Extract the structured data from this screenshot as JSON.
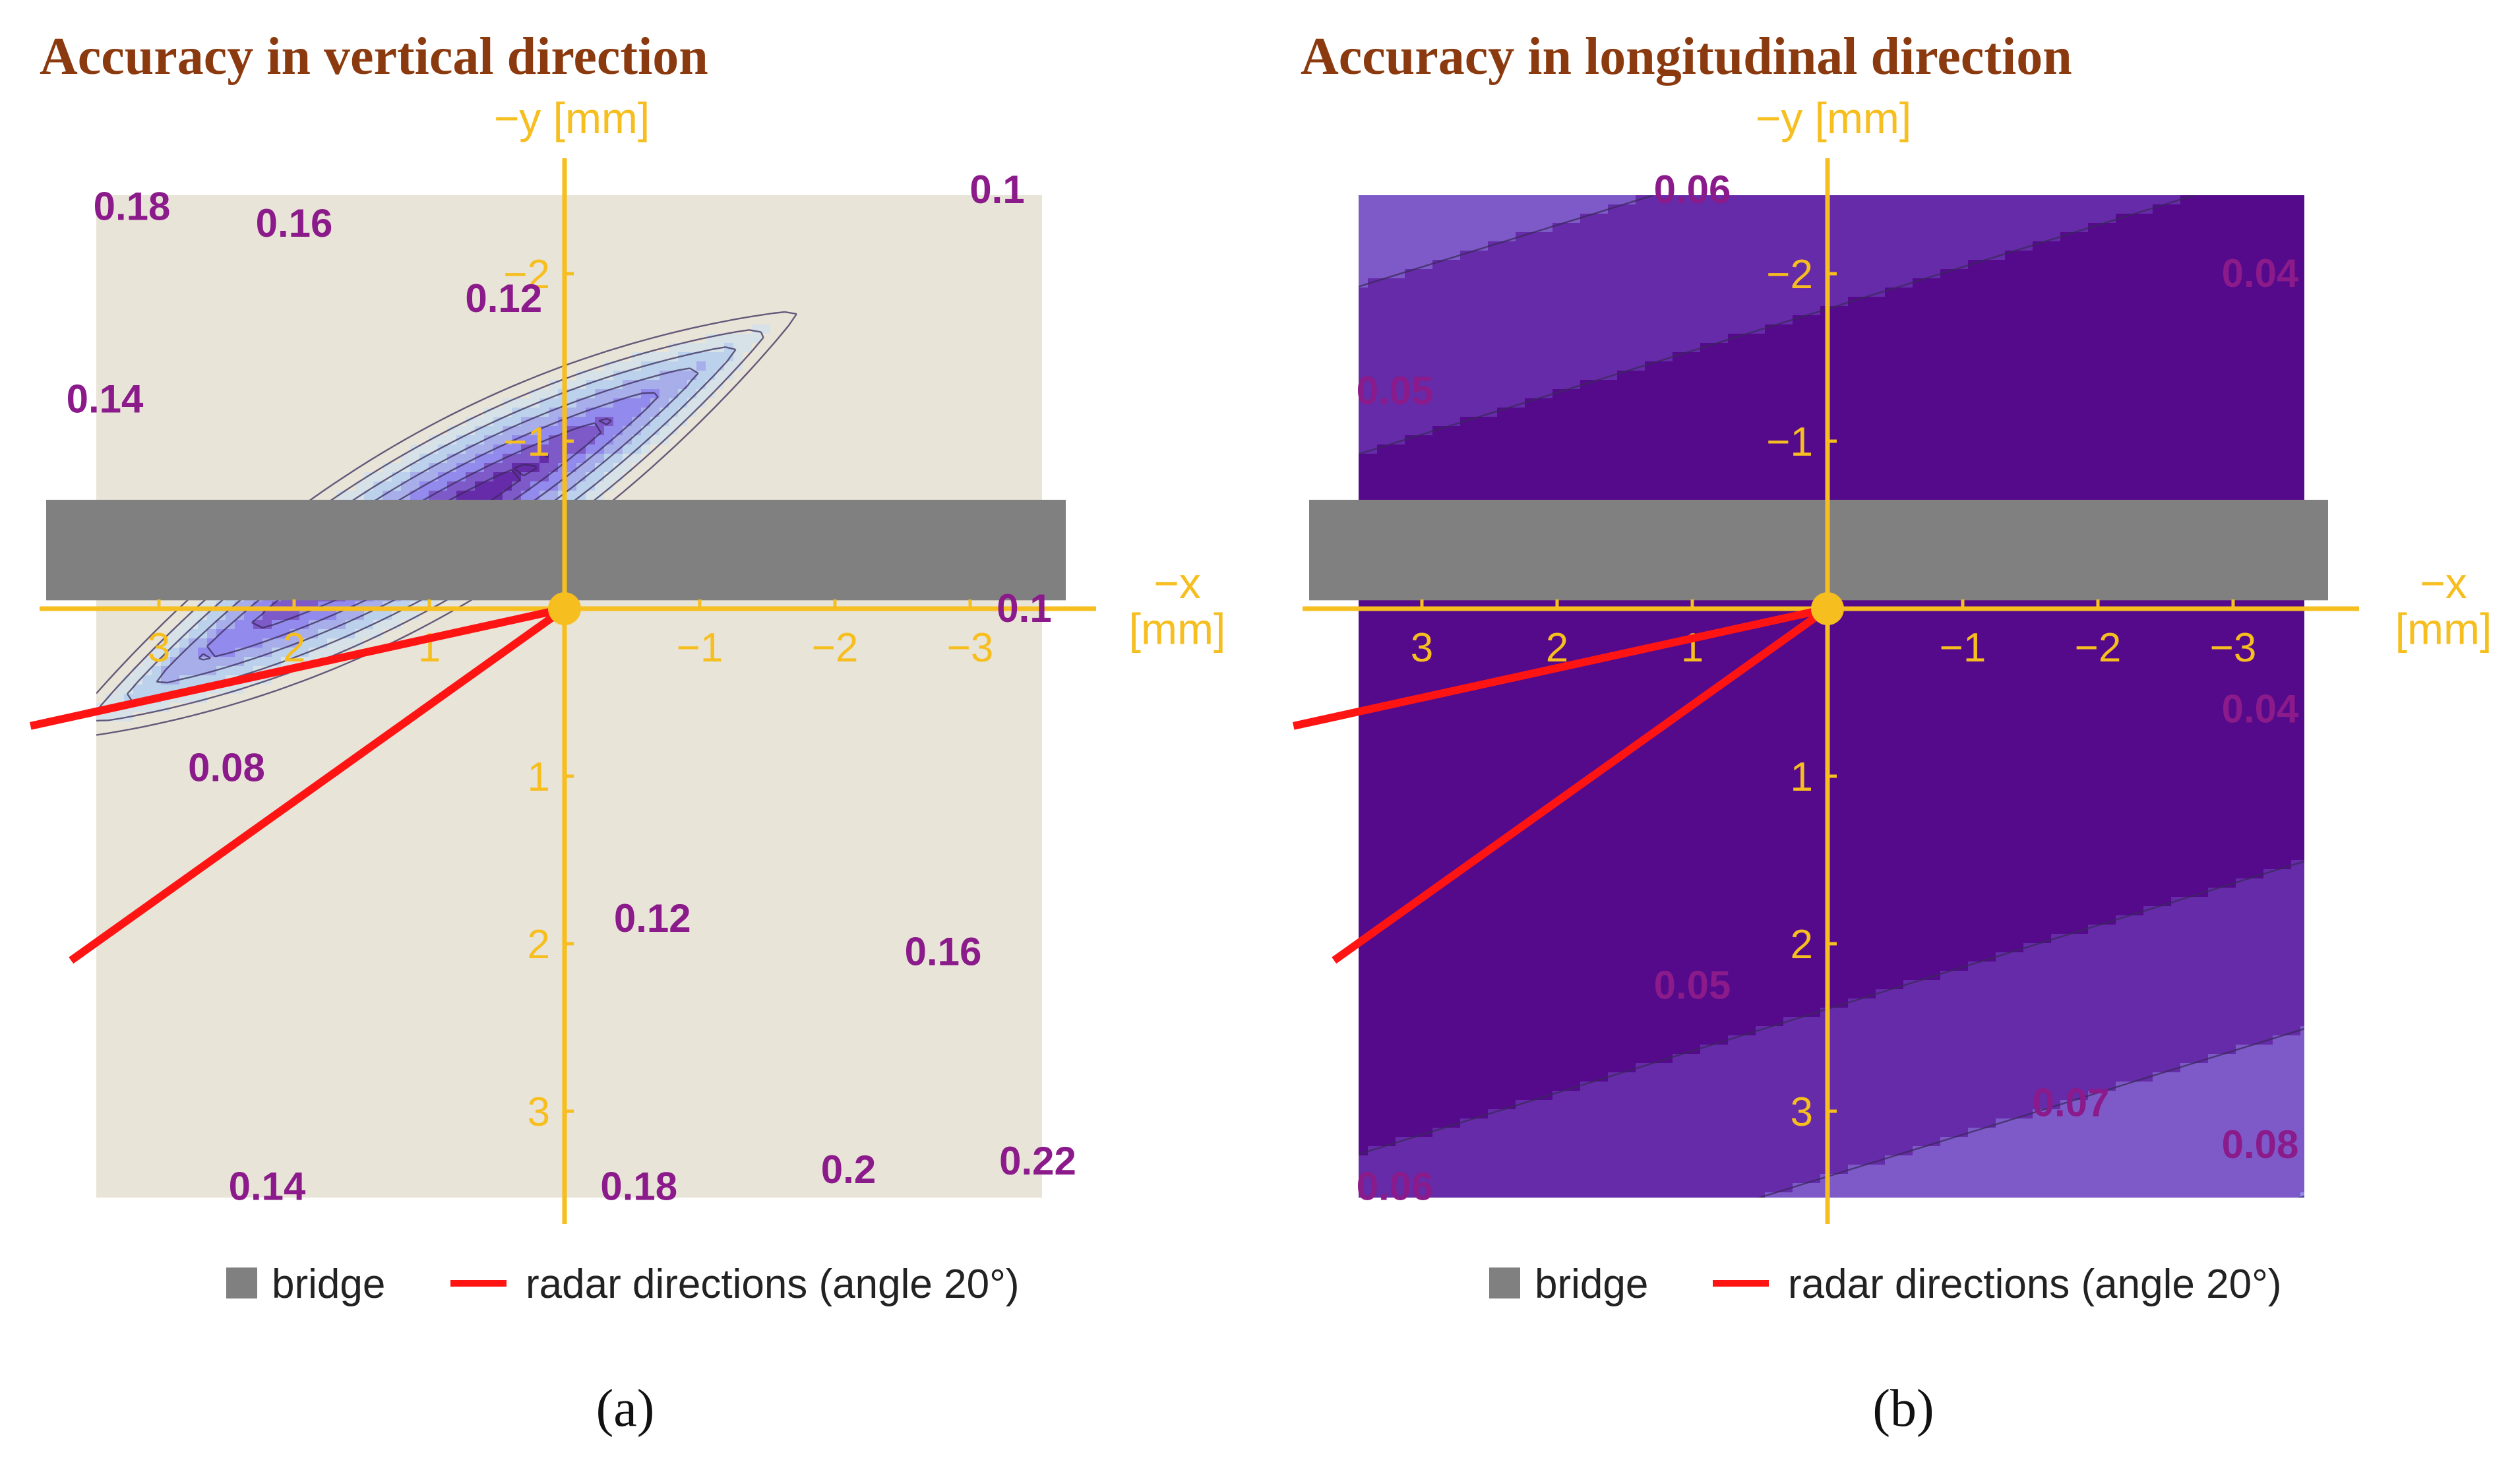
{
  "colors": {
    "title": "#8B3A0F",
    "axis": "#F6BE1E",
    "contour_label": "#8B1A8B",
    "bridge": "#808080",
    "radar": "#FF1414",
    "palette": [
      "#540A8A",
      "#662BA8",
      "#7E5AC8",
      "#928AEC",
      "#A8AEEA",
      "#BCD2EC",
      "#D6E2E8",
      "#E9E4D8"
    ]
  },
  "chart_data": [
    {
      "type": "contour",
      "panel": "a",
      "title": "Accuracy in vertical direction",
      "xlabel": "−x\n[mm]",
      "ylabel": "−y [mm]",
      "x_ticks": [
        3,
        2,
        1,
        -1,
        -2,
        -3
      ],
      "y_ticks": [
        -2,
        -1,
        1,
        2,
        3
      ],
      "x_tick_labels": [
        "3",
        "2",
        "1",
        "−1",
        "−2",
        "−3"
      ],
      "y_tick_labels": [
        "−2",
        "−1",
        "1",
        "2",
        "3"
      ],
      "xlim": [
        3.5,
        -3.5
      ],
      "ylim": [
        -2.5,
        3.5
      ],
      "contour_levels": [
        0.08,
        0.1,
        0.12,
        0.14,
        0.16,
        0.18,
        0.2,
        0.22
      ],
      "field": {
        "min": 0.08,
        "center": [
          1.0,
          -0.5
        ],
        "major_dir_deg": 25,
        "major_scale": 0.26,
        "minor_scale": 0.015
      },
      "contour_labels": [
        {
          "text": "0.18",
          "x": 3.2,
          "y": -2.4
        },
        {
          "text": "0.16",
          "x": 2.0,
          "y": -2.3
        },
        {
          "text": "0.1",
          "x": -3.2,
          "y": -2.5
        },
        {
          "text": "0.12",
          "x": 0.45,
          "y": -1.85
        },
        {
          "text": "0.14",
          "x": 3.4,
          "y": -1.25
        },
        {
          "text": "0.1",
          "x": -3.4,
          "y": 0.0
        },
        {
          "text": "0.08",
          "x": 2.5,
          "y": 0.95
        },
        {
          "text": "0.12",
          "x": -0.65,
          "y": 1.85
        },
        {
          "text": "0.16",
          "x": -2.8,
          "y": 2.05
        },
        {
          "text": "0.14",
          "x": 2.2,
          "y": 3.45
        },
        {
          "text": "0.18",
          "x": -0.55,
          "y": 3.45
        },
        {
          "text": "0.2",
          "x": -2.1,
          "y": 3.35
        },
        {
          "text": "0.22",
          "x": -3.5,
          "y": 3.3
        }
      ],
      "bridge": {
        "y_from": -0.65,
        "y_to": -0.05
      },
      "radar_lines": [
        {
          "x_end": 3.95,
          "y_end": 0.7
        },
        {
          "x_end": 3.65,
          "y_end": 2.1
        }
      ],
      "legend": {
        "bridge": "bridge",
        "radar": "radar directions (angle 20°)"
      },
      "caption": "(a)"
    },
    {
      "type": "contour",
      "panel": "b",
      "title": "Accuracy in longitudinal direction",
      "xlabel": "−x\n[mm]",
      "ylabel": "−y [mm]",
      "x_ticks": [
        3,
        2,
        1,
        -1,
        -2,
        -3
      ],
      "y_ticks": [
        -2,
        -1,
        1,
        2,
        3
      ],
      "x_tick_labels": [
        "3",
        "2",
        "1",
        "−1",
        "−2",
        "−3"
      ],
      "y_tick_labels": [
        "−2",
        "−1",
        "1",
        "2",
        "3"
      ],
      "xlim": [
        3.5,
        -3.5
      ],
      "ylim": [
        -2.5,
        3.5
      ],
      "contour_levels": [
        0.05,
        0.06,
        0.07,
        0.08
      ],
      "field": {
        "min": 0.04,
        "slope": 0.25,
        "offset": 0.3,
        "half_width": 1.1,
        "gain": 0.01
      },
      "contour_labels": [
        {
          "text": "0.06",
          "x": 1.0,
          "y": -2.5
        },
        {
          "text": "0.04",
          "x": -3.2,
          "y": -2.0
        },
        {
          "text": "0.05",
          "x": 3.2,
          "y": -1.3
        },
        {
          "text": "0.04",
          "x": -3.2,
          "y": 0.6
        },
        {
          "text": "0.05",
          "x": 1.0,
          "y": 2.25
        },
        {
          "text": "0.07",
          "x": -1.8,
          "y": 2.95
        },
        {
          "text": "0.08",
          "x": -3.2,
          "y": 3.2
        },
        {
          "text": "0.06",
          "x": 3.2,
          "y": 3.45
        }
      ],
      "bridge": {
        "y_from": -0.65,
        "y_to": -0.05
      },
      "radar_lines": [
        {
          "x_end": 3.95,
          "y_end": 0.7
        },
        {
          "x_end": 3.65,
          "y_end": 2.1
        }
      ],
      "legend": {
        "bridge": "bridge",
        "radar": "radar directions (angle 20°)"
      },
      "caption": "(b)"
    }
  ]
}
